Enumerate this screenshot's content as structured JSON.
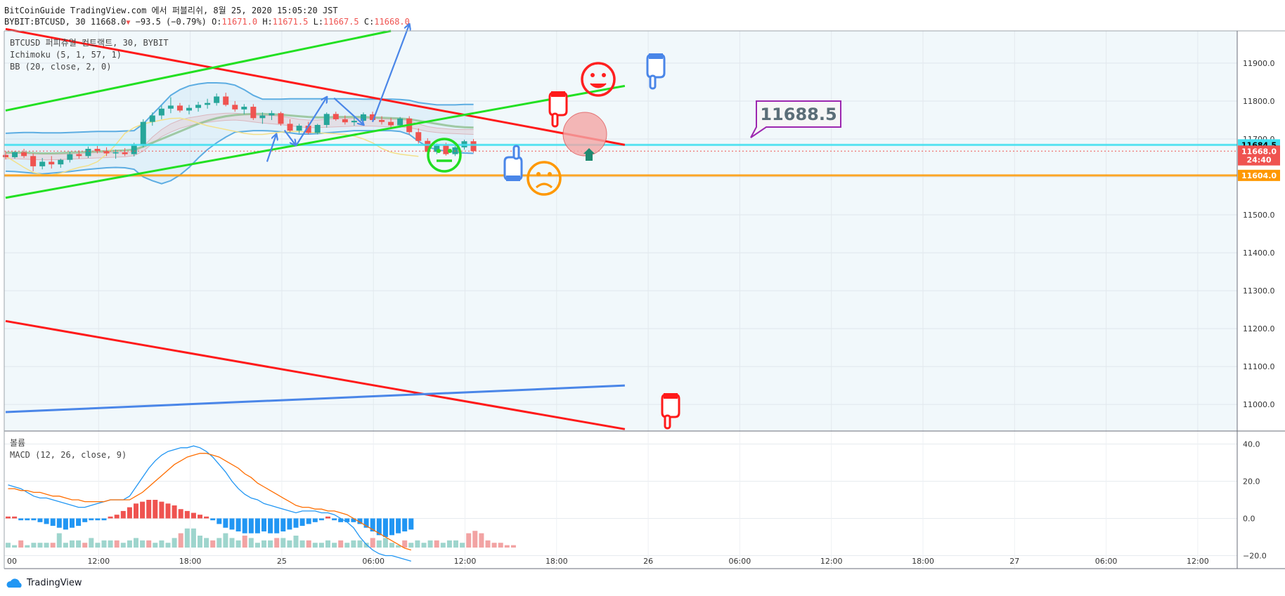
{
  "header": {
    "line1": "BitCoinGuide TradingView.com 에서 퍼블리쉬, 8월 25, 2020 15:05:20 JST",
    "symbol": "BYBIT:BTCUSD, 30",
    "last": "11668.0",
    "change": "−93.5 (−0.79%)",
    "o_label": "O:",
    "o_value": "11671.0",
    "h_label": "H:",
    "h_value": "11671.5",
    "l_label": "L:",
    "l_value": "11667.5",
    "c_label": "C:",
    "c_value": "11668.0"
  },
  "legend": {
    "title": "BTCUSD 퍼피츄얼 컨트랙트, 30, BYBIT",
    "ichimoku": "Ichimoku (5, 1, 57, 1)",
    "bb": "BB (20, close, 2, 0)",
    "volume": "볼륨",
    "macd": "MACD (12, 26, close, 9)"
  },
  "footer": {
    "brand": "TradingView"
  },
  "colors": {
    "up": "#26a69a",
    "down": "#ef5350",
    "macd": "#2196f3",
    "signal": "#ff6d00",
    "trend_red": "#ff1a1a",
    "trend_green": "#22e022",
    "trend_blue": "#4a86e8"
  },
  "chart_data": [
    {
      "type": "line",
      "title": "BTCUSD 퍼피츄얼 컨트랙트, 30, BYBIT",
      "ylim": [
        10930,
        11985
      ],
      "y_ticks": [
        11000,
        11100,
        11200,
        11300,
        11400,
        11500,
        11600,
        11700,
        11800,
        11900
      ],
      "y_tick_labels": [
        "11000.0",
        "11100.0",
        "11200.0",
        "11300.0",
        "11400.0",
        "11500.0",
        "11600.0",
        "11700.0",
        "11800.0",
        "11900.0"
      ],
      "x_tick_labels": [
        "00",
        "12:00",
        "18:00",
        "25",
        "06:00",
        "12:00",
        "18:00",
        "26",
        "06:00",
        "12:00",
        "18:00",
        "27",
        "06:00",
        "12:00"
      ],
      "price_labels": [
        {
          "value": 11684.5,
          "label": "11684.5",
          "color": "#40e0f0"
        },
        {
          "value": 11668.0,
          "label": "11668.0",
          "color": "#ef5350"
        },
        {
          "value": 11645,
          "label": "24:40",
          "color": "#ef5350"
        },
        {
          "value": 11604.0,
          "label": "11604.0",
          "color": "#ff9800"
        }
      ],
      "horizontal_lines": [
        {
          "value": 11684.5,
          "color": "#40e0f0"
        },
        {
          "value": 11604.0,
          "color": "#ff9800"
        }
      ],
      "trend_lines": [
        {
          "color": "red",
          "from": [
            0,
            11990
          ],
          "to": [
            67.5,
            11684.5
          ]
        },
        {
          "color": "red",
          "from": [
            0,
            11220
          ],
          "to": [
            67.5,
            10935
          ]
        },
        {
          "color": "green",
          "from": [
            0,
            11545
          ],
          "to": [
            67.5,
            11840
          ]
        },
        {
          "color": "green",
          "from": [
            0,
            11775
          ],
          "to": [
            42,
            11985
          ]
        },
        {
          "color": "blue",
          "from": [
            0,
            10980
          ],
          "to": [
            67.5,
            11050
          ]
        }
      ],
      "forecast_arrows": [
        {
          "from": [
            28.5,
            11640
          ],
          "to": [
            29.5,
            11712
          ]
        },
        {
          "from": [
            30.4,
            11723
          ],
          "to": [
            31.6,
            11684
          ]
        },
        {
          "from": [
            31.7,
            11684
          ],
          "to": [
            35,
            11810
          ]
        },
        {
          "from": [
            35.8,
            11808
          ],
          "to": [
            39,
            11738
          ]
        },
        {
          "from": [
            40,
            11745
          ],
          "to": [
            44,
            12002
          ]
        }
      ],
      "annotation": {
        "label": "11688.5",
        "value": 11688.5
      },
      "candles": [
        [
          11658,
          11668,
          11646,
          11652
        ],
        [
          11652,
          11668,
          11648,
          11665
        ],
        [
          11665,
          11674,
          11650,
          11655
        ],
        [
          11655,
          11662,
          11615,
          11628
        ],
        [
          11628,
          11650,
          11620,
          11640
        ],
        [
          11640,
          11655,
          11622,
          11633
        ],
        [
          11633,
          11648,
          11624,
          11645
        ],
        [
          11645,
          11667,
          11638,
          11660
        ],
        [
          11660,
          11670,
          11648,
          11655
        ],
        [
          11655,
          11680,
          11650,
          11674
        ],
        [
          11674,
          11682,
          11662,
          11668
        ],
        [
          11668,
          11678,
          11655,
          11662
        ],
        [
          11662,
          11672,
          11648,
          11665
        ],
        [
          11665,
          11676,
          11655,
          11660
        ],
        [
          11660,
          11690,
          11654,
          11685
        ],
        [
          11685,
          11752,
          11678,
          11745
        ],
        [
          11745,
          11770,
          11735,
          11762
        ],
        [
          11762,
          11788,
          11752,
          11780
        ],
        [
          11780,
          11810,
          11768,
          11788
        ],
        [
          11788,
          11795,
          11770,
          11775
        ],
        [
          11775,
          11790,
          11765,
          11782
        ],
        [
          11782,
          11798,
          11772,
          11790
        ],
        [
          11790,
          11806,
          11780,
          11795
        ],
        [
          11795,
          11820,
          11788,
          11812
        ],
        [
          11812,
          11822,
          11786,
          11790
        ],
        [
          11790,
          11800,
          11772,
          11778
        ],
        [
          11778,
          11792,
          11765,
          11785
        ],
        [
          11785,
          11792,
          11750,
          11755
        ],
        [
          11755,
          11770,
          11740,
          11762
        ],
        [
          11762,
          11775,
          11750,
          11768
        ],
        [
          11768,
          11772,
          11735,
          11740
        ],
        [
          11740,
          11752,
          11718,
          11722
        ],
        [
          11722,
          11740,
          11715,
          11735
        ],
        [
          11735,
          11745,
          11712,
          11716
        ],
        [
          11716,
          11740,
          11712,
          11737
        ],
        [
          11737,
          11770,
          11730,
          11766
        ],
        [
          11766,
          11772,
          11748,
          11752
        ],
        [
          11752,
          11762,
          11738,
          11744
        ],
        [
          11744,
          11758,
          11735,
          11748
        ],
        [
          11748,
          11770,
          11742,
          11765
        ],
        [
          11765,
          11772,
          11745,
          11750
        ],
        [
          11750,
          11760,
          11738,
          11745
        ],
        [
          11745,
          11756,
          11730,
          11736
        ],
        [
          11736,
          11758,
          11730,
          11754
        ],
        [
          11754,
          11760,
          11712,
          11718
        ],
        [
          11718,
          11728,
          11688,
          11695
        ],
        [
          11695,
          11702,
          11660,
          11666
        ],
        [
          11666,
          11688,
          11660,
          11684
        ],
        [
          11684,
          11690,
          11656,
          11660
        ],
        [
          11660,
          11682,
          11655,
          11678
        ],
        [
          11678,
          11698,
          11672,
          11694
        ],
        [
          11694,
          11700,
          11664,
          11668
        ]
      ],
      "bb_upper": [
        11715,
        11716,
        11717,
        11717,
        11716,
        11716,
        11716,
        11717,
        11718,
        11719,
        11720,
        11720,
        11720,
        11721,
        11722,
        11740,
        11765,
        11790,
        11815,
        11830,
        11840,
        11845,
        11848,
        11848,
        11847,
        11842,
        11830,
        11815,
        11805,
        11805,
        11805,
        11806,
        11806,
        11806,
        11806,
        11806,
        11806,
        11806,
        11806,
        11805,
        11805,
        11805,
        11805,
        11804,
        11802,
        11796,
        11793,
        11790,
        11790,
        11790,
        11791,
        11791
      ],
      "bb_lower": [
        11615,
        11614,
        11612,
        11610,
        11608,
        11610,
        11612,
        11614,
        11617,
        11620,
        11622,
        11624,
        11625,
        11624,
        11620,
        11600,
        11590,
        11582,
        11590,
        11605,
        11625,
        11650,
        11672,
        11690,
        11705,
        11718,
        11720,
        11722,
        11722,
        11721,
        11719,
        11716,
        11713,
        11713,
        11714,
        11716,
        11718,
        11720,
        11722,
        11722,
        11722,
        11722,
        11722,
        11720,
        11712,
        11694,
        11679,
        11672,
        11668,
        11665,
        11663,
        11662
      ],
      "ichimoku_cloud": {
        "span_a": [
          11662,
          11662,
          11662,
          11661,
          11660,
          11660,
          11660,
          11661,
          11662,
          11663,
          11664,
          11664,
          11664,
          11664,
          11666,
          11680,
          11705,
          11725,
          11740,
          11750,
          11756,
          11760,
          11764,
          11766,
          11768,
          11768,
          11766,
          11763,
          11762,
          11762,
          11760,
          11756,
          11752,
          11750,
          11750,
          11752,
          11754,
          11754,
          11754,
          11754,
          11754,
          11753,
          11752,
          11752,
          11748,
          11740,
          11733,
          11729,
          11727,
          11725,
          11725,
          11725
        ],
        "span_b": [
          11648,
          11648,
          11647,
          11646,
          11645,
          11645,
          11646,
          11647,
          11648,
          11649,
          11650,
          11651,
          11652,
          11653,
          11656,
          11668,
          11688,
          11706,
          11718,
          11728,
          11735,
          11740,
          11744,
          11747,
          11749,
          11750,
          11748,
          11745,
          11742,
          11740,
          11738,
          11735,
          11732,
          11730,
          11730,
          11731,
          11732,
          11733,
          11734,
          11734,
          11734,
          11733,
          11732,
          11732,
          11730,
          11725,
          11720,
          11717,
          11715,
          11714,
          11713,
          11712
        ]
      },
      "bb_basis": [
        11664,
        11664,
        11664,
        11663,
        11662,
        11662,
        11663,
        11664,
        11665,
        11666,
        11667,
        11668,
        11669,
        11670,
        11672,
        11680,
        11690,
        11700,
        11710,
        11720,
        11730,
        11740,
        11748,
        11755,
        11760,
        11763,
        11765,
        11766,
        11766,
        11765,
        11764,
        11762,
        11760,
        11758,
        11757,
        11757,
        11758,
        11758,
        11758,
        11758,
        11757,
        11756,
        11755,
        11754,
        11752,
        11748,
        11744,
        11740,
        11736,
        11733,
        11731,
        11730
      ],
      "lagging_span": [
        11655,
        11640,
        11625,
        11612,
        11606,
        11605,
        11610,
        11618,
        11625,
        11630,
        11640,
        11660,
        11685,
        11715,
        11730,
        11740,
        11745,
        11750,
        11754,
        11755,
        11750,
        11742,
        11735,
        11730,
        11725,
        11720,
        11715,
        11712,
        11712,
        11715,
        11718,
        11720,
        11720,
        11718,
        11716,
        11715,
        11714,
        11712,
        11708,
        11700,
        11690,
        11675,
        11665,
        11660,
        11657,
        11654
      ]
    },
    {
      "type": "bar",
      "title": "MACD (12, 26, close, 9)",
      "ylim": [
        -27,
        47
      ],
      "y_ticks": [
        -20,
        0,
        20,
        40
      ],
      "y_tick_labels": [
        "−20.0",
        "0.0",
        "20.0",
        "40.0"
      ],
      "histogram": [
        1,
        1,
        -1,
        -1,
        -1,
        -2,
        -3,
        -4,
        -5,
        -6,
        -5,
        -4,
        -2,
        -1,
        -1,
        -1,
        1,
        2,
        4,
        6,
        8,
        9,
        10,
        10,
        9,
        8,
        7,
        5,
        4,
        3,
        2,
        1,
        -1,
        -3,
        -5,
        -6,
        -7,
        -8,
        -8,
        -8,
        -7,
        -8,
        -8,
        -7,
        -6,
        -5,
        -4,
        -3,
        -2,
        -1,
        1,
        -1,
        -2,
        -2,
        -2,
        -3,
        -5,
        -7,
        -9,
        -10,
        -9,
        -8,
        -7,
        -6
      ],
      "macd": [
        18,
        17,
        16,
        14,
        12,
        11,
        11,
        10,
        9,
        8,
        7,
        6,
        6,
        7,
        8,
        9,
        10,
        10,
        10,
        12,
        17,
        22,
        27,
        31,
        34,
        36,
        37,
        38,
        38,
        39,
        38,
        36,
        33,
        29,
        25,
        20,
        16,
        13,
        11,
        10,
        8,
        7,
        6,
        5,
        4,
        3,
        4,
        4,
        4,
        3,
        3,
        2,
        0,
        -2,
        -5,
        -10,
        -14,
        -17,
        -19,
        -20,
        -20,
        -21,
        -22,
        -23
      ],
      "signal": [
        16,
        16,
        15,
        15,
        14,
        14,
        13,
        12,
        12,
        11,
        10,
        10,
        9,
        9,
        9,
        9,
        10,
        10,
        10,
        10,
        12,
        14,
        17,
        20,
        23,
        26,
        29,
        31,
        33,
        34,
        35,
        35,
        34,
        33,
        31,
        29,
        27,
        24,
        22,
        19,
        17,
        15,
        13,
        11,
        9,
        7,
        6,
        6,
        5,
        5,
        4,
        4,
        3,
        2,
        0,
        -2,
        -4,
        -6,
        -8,
        -10,
        -12,
        -14,
        -16,
        -17
      ]
    },
    {
      "type": "bar",
      "title": "볼륨",
      "values": [
        2,
        1,
        3,
        1,
        2,
        2,
        2,
        2,
        6,
        2,
        3,
        3,
        2,
        4,
        2,
        3,
        3,
        3,
        2,
        3,
        4,
        3,
        3,
        2,
        3,
        2,
        4,
        6,
        8,
        8,
        5,
        4,
        3,
        4,
        6,
        4,
        3,
        5,
        4,
        2,
        3,
        3,
        4,
        4,
        3,
        5,
        3,
        3,
        2,
        2,
        3,
        2,
        3,
        2,
        3,
        3,
        2,
        4,
        3,
        4,
        2,
        1,
        3,
        2,
        3,
        2,
        3,
        3,
        2,
        3,
        3,
        2,
        6,
        7,
        6,
        3,
        2,
        2,
        1,
        1
      ]
    }
  ]
}
